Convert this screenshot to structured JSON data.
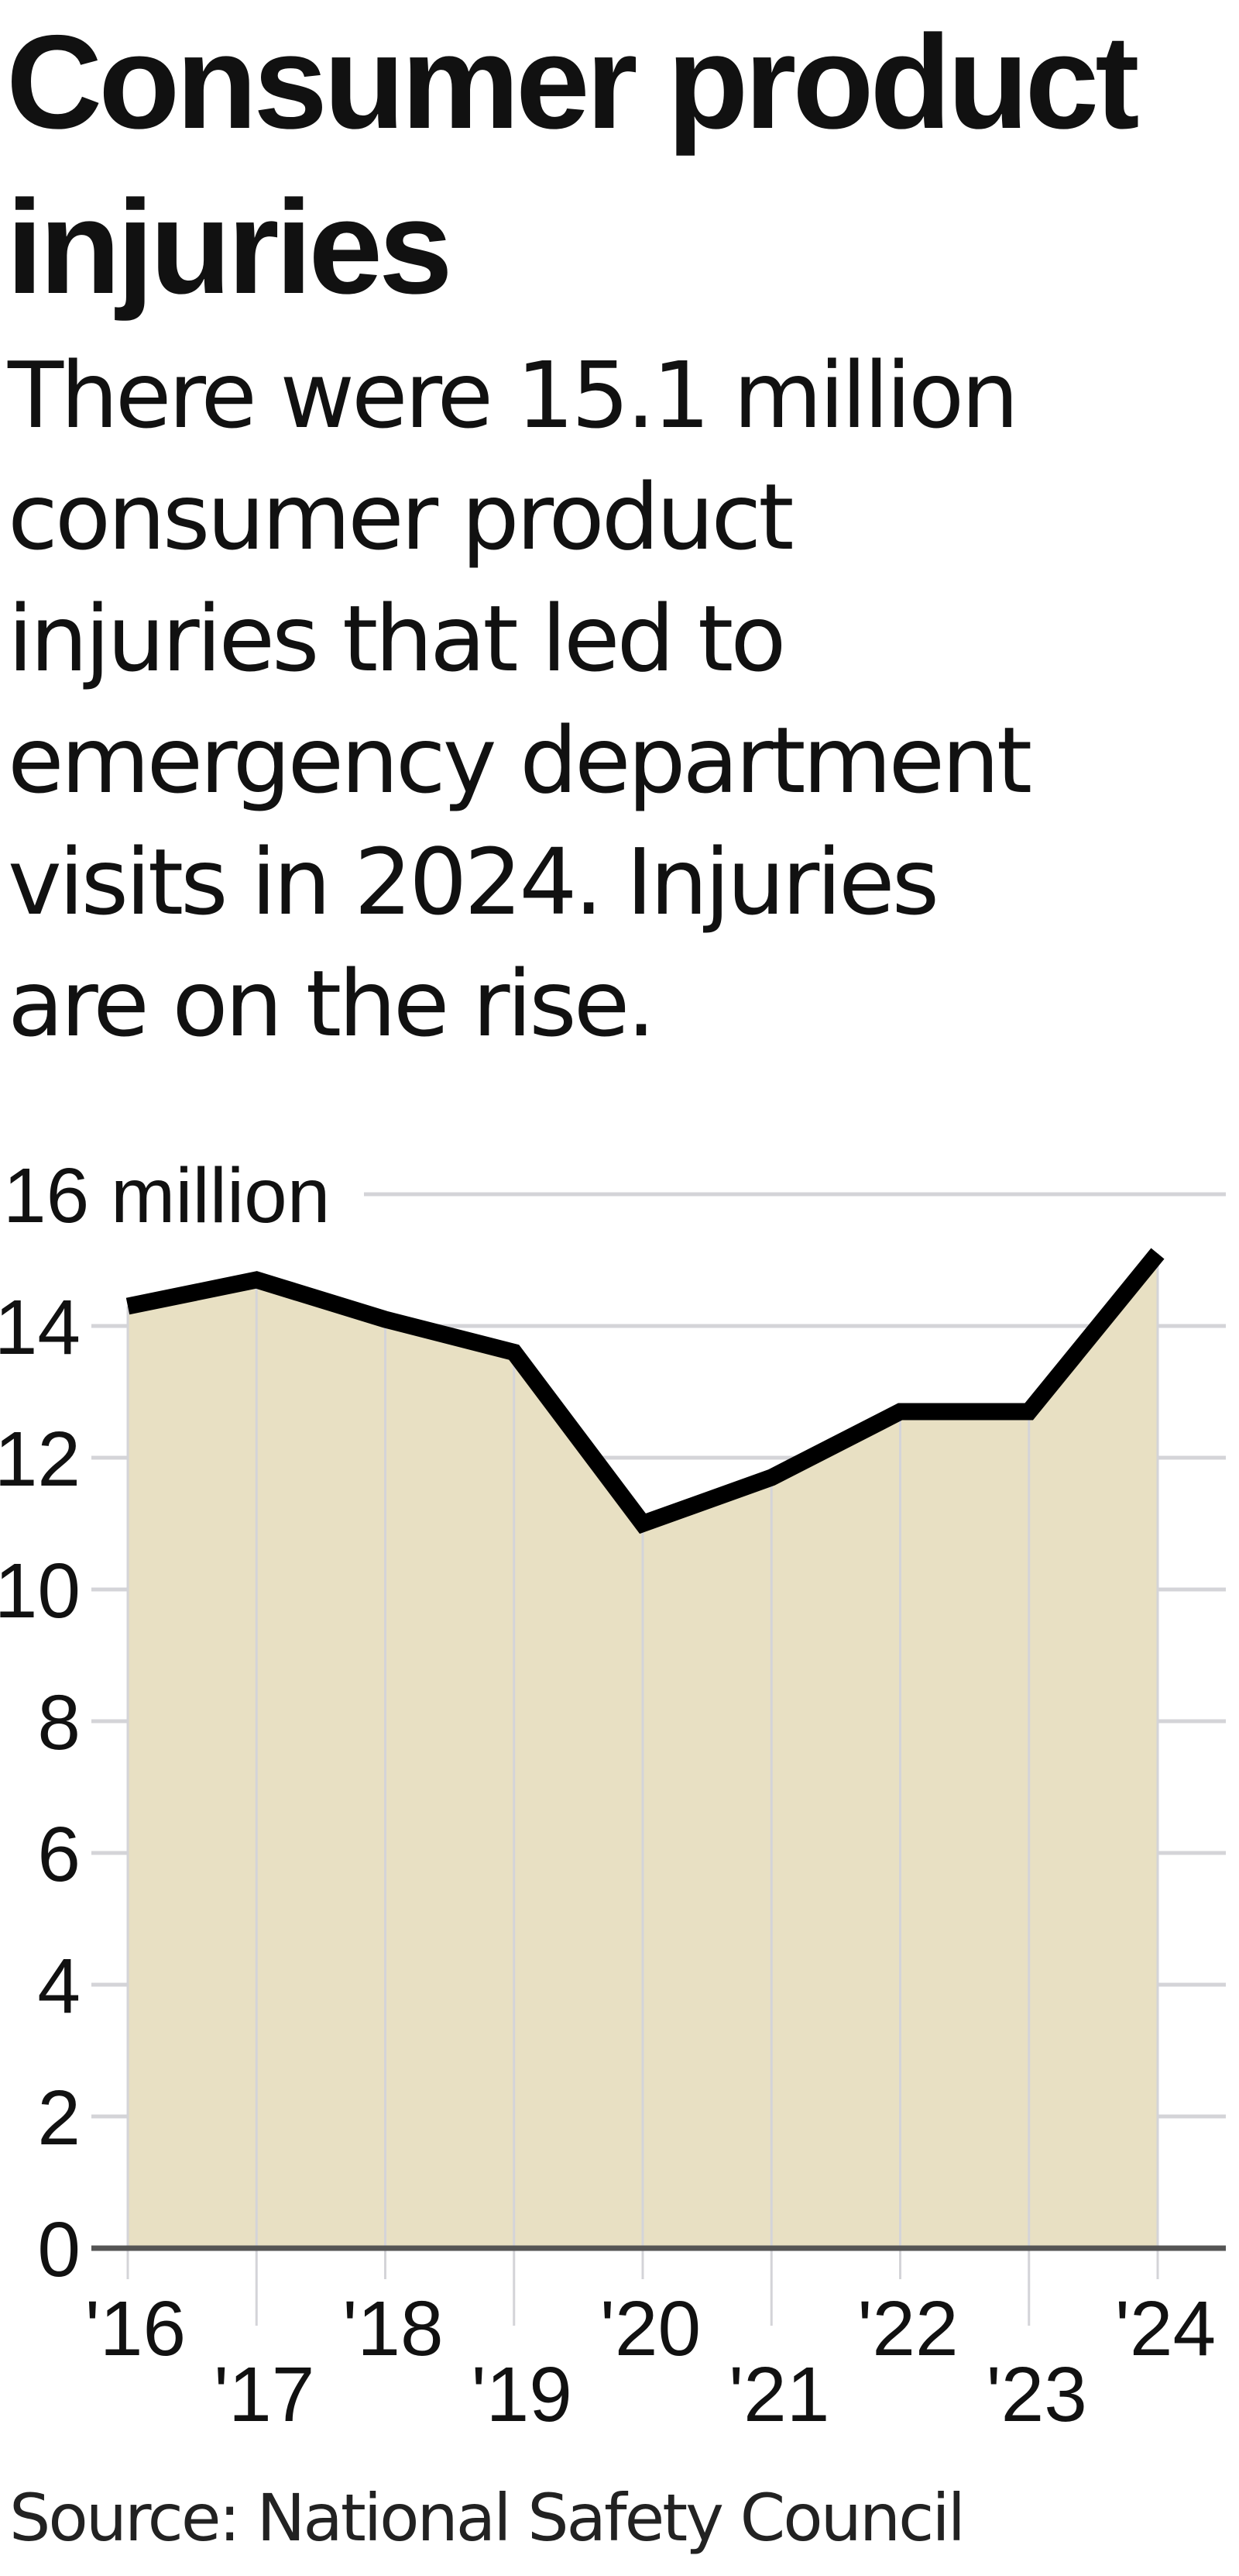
{
  "header": {
    "title_lines": [
      "Consumer product",
      "injuries"
    ],
    "description_lines": [
      "There were 15.1 million",
      "consumer product",
      "injuries that led to",
      "emergency department",
      "visits in 2024. Injuries",
      "are on the rise."
    ]
  },
  "footer": {
    "source": "Source: National Safety Council"
  },
  "colors": {
    "area_fill": "#E8E0C3",
    "line": "#000000",
    "gridline": "#D4D4D8",
    "baseline": "#555555"
  },
  "chart_data": {
    "type": "area",
    "title": "Consumer product injuries",
    "subtitle": "There were 15.1 million consumer product injuries that led to emergency department visits in 2024. Injuries are on the rise.",
    "xlabel": "",
    "ylabel": "",
    "unit": "million",
    "categories": [
      "'16",
      "'17",
      "'18",
      "'19",
      "'20",
      "'21",
      "'22",
      "'23",
      "'24"
    ],
    "x": [
      2016,
      2017,
      2018,
      2019,
      2020,
      2021,
      2022,
      2023,
      2024
    ],
    "series": [
      {
        "name": "Consumer product injuries (millions)",
        "values": [
          14.3,
          14.7,
          14.1,
          13.6,
          11.0,
          11.7,
          12.7,
          12.7,
          15.1
        ]
      }
    ],
    "yticks": [
      "16 million",
      "14",
      "12",
      "10",
      "8",
      "6",
      "4",
      "2",
      "0"
    ],
    "ylim": [
      0,
      16
    ],
    "grid": true,
    "legend": "none",
    "source": "Source: National Safety Council"
  }
}
